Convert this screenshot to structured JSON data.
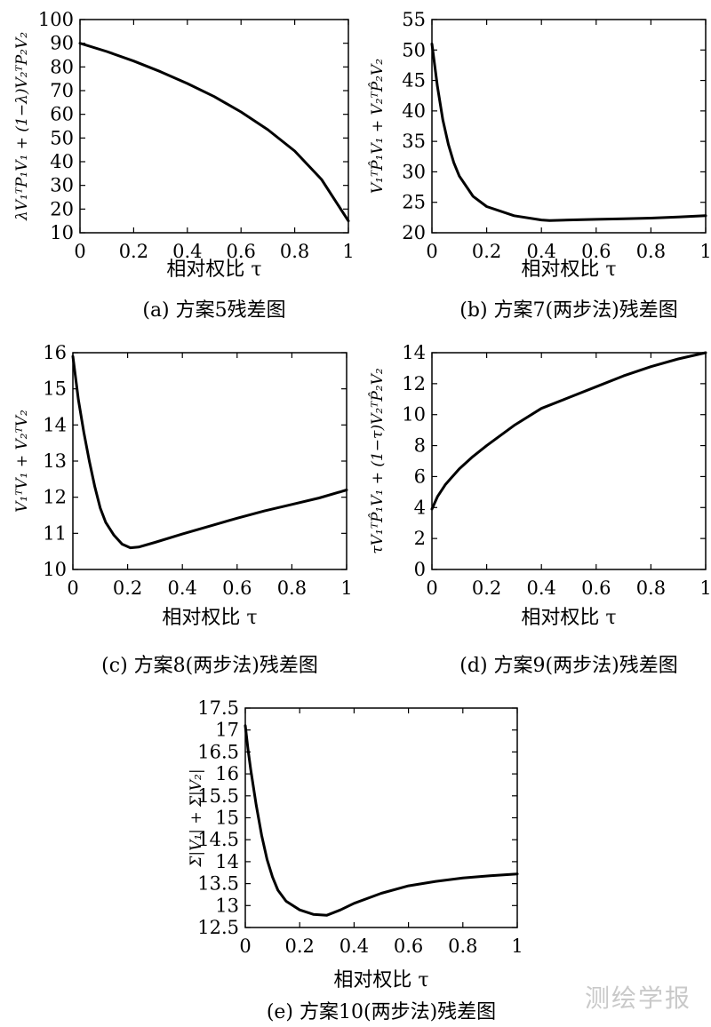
{
  "watermark": "测绘学报",
  "chart_data": [
    {
      "id": "a",
      "type": "line",
      "caption": "(a) 方案5残差图",
      "xlabel": "相对权比 τ",
      "ylabel": "λV₁ᵀP₁V₁ + (1−λ)V₂ᵀP₂V₂",
      "xlim": [
        0,
        1
      ],
      "ylim": [
        10,
        100
      ],
      "xticks": [
        0,
        0.2,
        0.4,
        0.6,
        0.8,
        1
      ],
      "xtick_labels": [
        "0",
        "0.2",
        "0.4",
        "0.6",
        "0.8",
        "1"
      ],
      "yticks": [
        10,
        20,
        30,
        40,
        50,
        60,
        70,
        80,
        90,
        100
      ],
      "ytick_labels": [
        "10",
        "20",
        "30",
        "40",
        "50",
        "60",
        "70",
        "80",
        "90",
        "100"
      ],
      "series": [
        {
          "x": [
            0,
            0.1,
            0.2,
            0.3,
            0.4,
            0.5,
            0.6,
            0.7,
            0.8,
            0.9,
            1.0
          ],
          "y": [
            90,
            86.5,
            82.5,
            78,
            73,
            67.5,
            61,
            53.5,
            44.5,
            32.5,
            15
          ]
        }
      ]
    },
    {
      "id": "b",
      "type": "line",
      "caption": "(b) 方案7(两步法)残差图",
      "xlabel": "相对权比 τ",
      "ylabel": "V₁ᵀP̂₁V₁ + V₂ᵀP̂₂V₂",
      "xlim": [
        0,
        1
      ],
      "ylim": [
        20,
        55
      ],
      "xticks": [
        0,
        0.2,
        0.4,
        0.6,
        0.8,
        1
      ],
      "xtick_labels": [
        "0",
        "0.2",
        "0.4",
        "0.6",
        "0.8",
        "1"
      ],
      "yticks": [
        20,
        25,
        30,
        35,
        40,
        45,
        50,
        55
      ],
      "ytick_labels": [
        "20",
        "25",
        "30",
        "35",
        "40",
        "45",
        "50",
        "55"
      ],
      "series": [
        {
          "x": [
            0,
            0.02,
            0.04,
            0.06,
            0.08,
            0.1,
            0.15,
            0.2,
            0.3,
            0.4,
            0.43,
            0.5,
            0.6,
            0.7,
            0.8,
            0.9,
            1.0
          ],
          "y": [
            51,
            44,
            38.5,
            34.5,
            31.5,
            29.3,
            26,
            24.3,
            22.8,
            22.1,
            22,
            22.1,
            22.2,
            22.3,
            22.4,
            22.6,
            22.8
          ]
        }
      ]
    },
    {
      "id": "c",
      "type": "line",
      "caption": "(c) 方案8(两步法)残差图",
      "xlabel": "相对权比 τ",
      "ylabel": "V₁ᵀV₁ + V₂ᵀV₂",
      "xlim": [
        0,
        1
      ],
      "ylim": [
        10,
        16
      ],
      "xticks": [
        0,
        0.2,
        0.4,
        0.6,
        0.8,
        1
      ],
      "xtick_labels": [
        "0",
        "0.2",
        "0.4",
        "0.6",
        "0.8",
        "1"
      ],
      "yticks": [
        10,
        11,
        12,
        13,
        14,
        15,
        16
      ],
      "ytick_labels": [
        "10",
        "11",
        "12",
        "13",
        "14",
        "15",
        "16"
      ],
      "series": [
        {
          "x": [
            0,
            0.01,
            0.02,
            0.04,
            0.06,
            0.08,
            0.1,
            0.12,
            0.15,
            0.18,
            0.21,
            0.24,
            0.3,
            0.4,
            0.5,
            0.6,
            0.7,
            0.8,
            0.9,
            1.0
          ],
          "y": [
            15.9,
            15.3,
            14.7,
            13.8,
            13.0,
            12.3,
            11.7,
            11.3,
            10.95,
            10.7,
            10.6,
            10.62,
            10.75,
            10.98,
            11.2,
            11.42,
            11.62,
            11.8,
            11.98,
            12.2
          ]
        }
      ]
    },
    {
      "id": "d",
      "type": "line",
      "caption": "(d) 方案9(两步法)残差图",
      "xlabel": "相对权比 τ",
      "ylabel": "τV₁ᵀP̂₁V₁ + (1−τ)V₂ᵀP̂₂V₂",
      "xlim": [
        0,
        1
      ],
      "ylim": [
        0,
        14
      ],
      "xticks": [
        0,
        0.2,
        0.4,
        0.6,
        0.8,
        1
      ],
      "xtick_labels": [
        "0",
        "0.2",
        "0.4",
        "0.6",
        "0.8",
        "1"
      ],
      "yticks": [
        0,
        2,
        4,
        6,
        8,
        10,
        12,
        14
      ],
      "ytick_labels": [
        "0",
        "2",
        "4",
        "6",
        "8",
        "10",
        "12",
        "14"
      ],
      "series": [
        {
          "x": [
            0,
            0.02,
            0.05,
            0.1,
            0.15,
            0.2,
            0.3,
            0.4,
            0.5,
            0.6,
            0.7,
            0.8,
            0.9,
            1.0
          ],
          "y": [
            3.9,
            4.7,
            5.5,
            6.5,
            7.3,
            8.0,
            9.3,
            10.4,
            11.1,
            11.8,
            12.5,
            13.1,
            13.6,
            14.0
          ]
        }
      ]
    },
    {
      "id": "e",
      "type": "line",
      "caption": "(e) 方案10(两步法)残差图",
      "xlabel": "相对权比 τ",
      "ylabel": "Σ|V₁| + Σ|V₂|",
      "xlim": [
        0,
        1
      ],
      "ylim": [
        12.5,
        17.5
      ],
      "xticks": [
        0,
        0.2,
        0.4,
        0.6,
        0.8,
        1
      ],
      "xtick_labels": [
        "0",
        "0.2",
        "0.4",
        "0.6",
        "0.8",
        "1"
      ],
      "yticks": [
        12.5,
        13,
        13.5,
        14,
        14.5,
        15,
        15.5,
        16,
        16.5,
        17,
        17.5
      ],
      "ytick_labels": [
        "12.5",
        "13",
        "13.5",
        "14",
        "14.5",
        "15",
        "15.5",
        "16",
        "16.5",
        "17",
        "17.5"
      ],
      "series": [
        {
          "x": [
            0,
            0.01,
            0.02,
            0.04,
            0.06,
            0.08,
            0.1,
            0.12,
            0.15,
            0.2,
            0.25,
            0.3,
            0.35,
            0.4,
            0.5,
            0.6,
            0.7,
            0.8,
            0.9,
            1.0
          ],
          "y": [
            17.1,
            16.55,
            16.1,
            15.3,
            14.6,
            14.05,
            13.65,
            13.35,
            13.1,
            12.9,
            12.8,
            12.78,
            12.9,
            13.05,
            13.28,
            13.45,
            13.55,
            13.63,
            13.68,
            13.72
          ]
        }
      ]
    }
  ]
}
